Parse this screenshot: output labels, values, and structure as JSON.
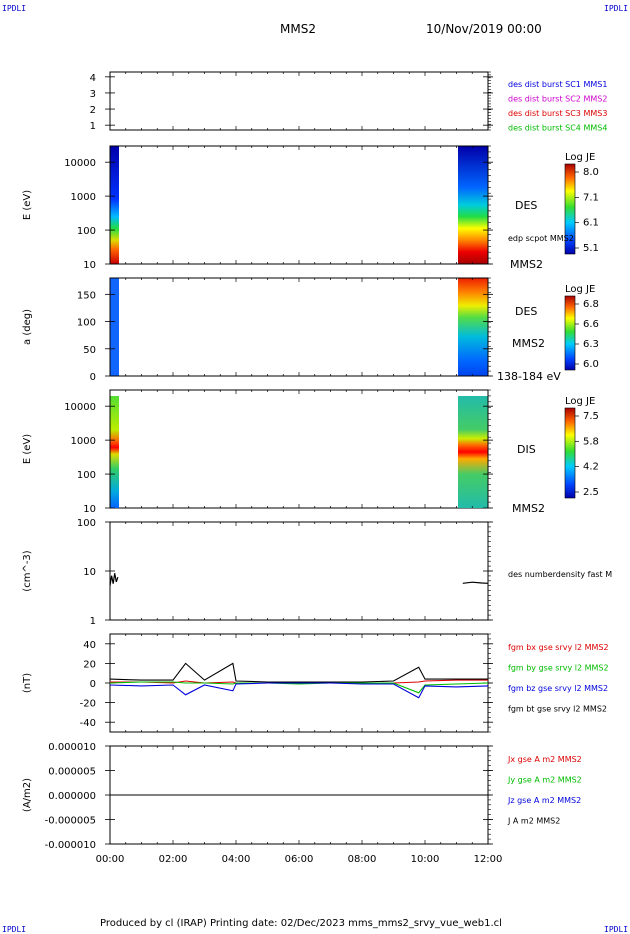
{
  "corner_label": "IPDLI",
  "header": {
    "spacecraft": "MMS2",
    "date_time": "10/Nov/2019 00:00"
  },
  "footer": {
    "text": "Produced by cl (IRAP)   Printing date: 02/Dec/2023   mms_mms2_srvy_vue_web1.cl"
  },
  "colors": {
    "red": "#dd0000",
    "green": "#00bb00",
    "blue": "#0000dd",
    "magenta": "#cc00cc",
    "black": "#000000"
  },
  "chart_data": [
    {
      "type": "line",
      "panel": "burst-availability",
      "y_ticks": [
        "1",
        "2",
        "3",
        "4"
      ],
      "ylim": [
        0.7,
        4.3
      ],
      "legend": [
        {
          "name": "des dist burst SC1 MMS1",
          "color": "#0000dd"
        },
        {
          "name": "des dist burst SC2 MMS2",
          "color": "#cc00cc"
        },
        {
          "name": "des dist burst SC3 MMS3",
          "color": "#dd0000"
        },
        {
          "name": "des dist burst SC4 MMS4",
          "color": "#00bb00"
        }
      ]
    },
    {
      "type": "heatmap",
      "panel": "des-energy-spectrogram",
      "ylabel": "E (eV)",
      "yscale": "log",
      "y_ticks": [
        "10",
        "100",
        "1000",
        "10000"
      ],
      "ylim": [
        10,
        30000
      ],
      "data_intervals_hours": [
        [
          0.0,
          0.27
        ],
        [
          11.2,
          12.0
        ]
      ],
      "right_labels": [
        "DES",
        "edp scpot MMS2",
        "MMS2"
      ],
      "colorbar": {
        "title": "Log JE",
        "ticks": [
          "8.0",
          "7.1",
          "6.1",
          "5.1"
        ]
      }
    },
    {
      "type": "heatmap",
      "panel": "des-pitch-angle",
      "ylabel": "a (deg)",
      "y_ticks": [
        "0",
        "50",
        "100",
        "150"
      ],
      "ylim": [
        0,
        180
      ],
      "data_intervals_hours": [
        [
          0.0,
          0.27
        ],
        [
          11.2,
          12.0
        ]
      ],
      "right_labels": [
        "DES",
        "MMS2",
        "138-184 eV"
      ],
      "colorbar": {
        "title": "Log JE",
        "ticks": [
          "6.8",
          "6.6",
          "6.3",
          "6.0"
        ]
      }
    },
    {
      "type": "heatmap",
      "panel": "dis-energy-spectrogram",
      "ylabel": "E (eV)",
      "yscale": "log",
      "y_ticks": [
        "10",
        "100",
        "1000",
        "10000"
      ],
      "ylim": [
        10,
        30000
      ],
      "data_intervals_hours": [
        [
          0.0,
          0.27
        ],
        [
          11.2,
          12.0
        ]
      ],
      "right_labels": [
        "DIS",
        "MMS2"
      ],
      "colorbar": {
        "title": "Log JE",
        "ticks": [
          "7.5",
          "5.8",
          "4.2",
          "2.5"
        ]
      }
    },
    {
      "type": "line",
      "panel": "density",
      "ylabel": "(cm^-3)",
      "yscale": "log",
      "y_ticks": [
        "1",
        "10",
        "100"
      ],
      "ylim": [
        1,
        100
      ],
      "series": [
        {
          "name": "des numberdensity fast M",
          "color": "#000000",
          "x": [
            0.0,
            0.05,
            0.1,
            0.15,
            0.2,
            0.25,
            11.2,
            11.5,
            11.8,
            12.0
          ],
          "y": [
            5.0,
            8.0,
            5.5,
            9.0,
            6.0,
            7.5,
            5.6,
            5.9,
            5.7,
            5.6
          ]
        }
      ]
    },
    {
      "type": "line",
      "panel": "magnetic-field",
      "ylabel": "(nT)",
      "y_ticks": [
        "-40",
        "-20",
        "0",
        "20",
        "40"
      ],
      "ylim": [
        -50,
        50
      ],
      "series": [
        {
          "name": "fgm bx gse srvy l2 MMS2",
          "color": "#dd0000",
          "x": [
            0,
            1,
            2,
            2.4,
            3,
            3.9,
            4,
            5,
            6,
            7,
            8,
            9,
            9.8,
            10,
            11,
            12
          ],
          "y": [
            1,
            1,
            0,
            2,
            0,
            1,
            0,
            0,
            0,
            0,
            0,
            0,
            1,
            2,
            3,
            3
          ]
        },
        {
          "name": "fgm by gse srvy l2 MMS2",
          "color": "#00bb00",
          "x": [
            0,
            1,
            2,
            2.4,
            3,
            3.9,
            4,
            5,
            6,
            7,
            8,
            9,
            9.8,
            10,
            11,
            12
          ],
          "y": [
            0,
            1,
            1,
            0,
            0,
            -1,
            0,
            0,
            -1,
            0,
            0,
            0,
            -10,
            -2,
            -1,
            0
          ]
        },
        {
          "name": "fgm bz gse srvy l2 MMS2",
          "color": "#0000dd",
          "x": [
            0,
            1,
            2,
            2.4,
            3,
            3.9,
            4,
            5,
            6,
            7,
            8,
            9,
            9.8,
            10,
            11,
            12
          ],
          "y": [
            -2,
            -3,
            -2,
            -12,
            -2,
            -8,
            -1,
            0,
            0,
            0,
            -1,
            -1,
            -15,
            -3,
            -4,
            -3
          ]
        },
        {
          "name": "fgm bt gse srvy l2 MMS2",
          "color": "#000000",
          "x": [
            0,
            1,
            2,
            2.4,
            3,
            3.9,
            4,
            5,
            6,
            7,
            8,
            9,
            9.8,
            10,
            11,
            12
          ],
          "y": [
            4,
            3,
            3,
            20,
            3,
            20,
            2,
            1,
            1,
            1,
            1,
            2,
            16,
            4,
            4,
            4
          ]
        }
      ]
    },
    {
      "type": "line",
      "panel": "current-density",
      "ylabel": "(A/m2)",
      "y_ticks": [
        "-0.000010",
        "-0.000005",
        "0.000000",
        "0.000005",
        "0.000010"
      ],
      "ylim": [
        -1e-05,
        1e-05
      ],
      "series": [
        {
          "name": "Jx gse A m2 MMS2",
          "color": "#dd0000",
          "x": [
            0,
            12
          ],
          "y": [
            0,
            0
          ]
        },
        {
          "name": "Jy gse A m2 MMS2",
          "color": "#00bb00",
          "x": [
            0,
            12
          ],
          "y": [
            0,
            0
          ]
        },
        {
          "name": "Jz gse A m2 MMS2",
          "color": "#0000dd",
          "x": [
            0,
            12
          ],
          "y": [
            0,
            0
          ]
        },
        {
          "name": "J A m2 MMS2",
          "color": "#000000",
          "x": [
            0,
            12
          ],
          "y": [
            0,
            0
          ]
        }
      ]
    }
  ],
  "x_axis": {
    "ticks": [
      "00:00",
      "02:00",
      "04:00",
      "06:00",
      "08:00",
      "10:00",
      "12:00"
    ],
    "range_hours": [
      0,
      12
    ]
  }
}
